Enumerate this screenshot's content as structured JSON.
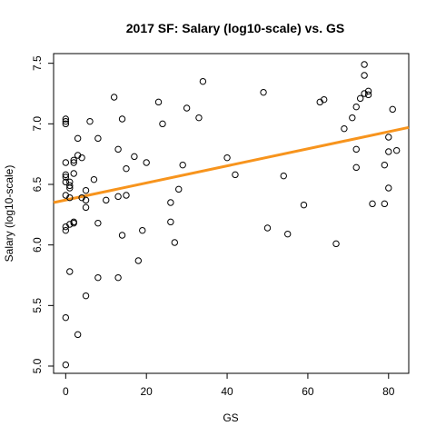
{
  "chart_data": {
    "type": "scatter",
    "title": "2017 SF: Salary (log10-scale) vs. GS",
    "xlabel": "GS",
    "ylabel": "Salary (log10-scale)",
    "xlim": [
      -3,
      85
    ],
    "ylim": [
      4.94,
      7.58
    ],
    "xticks": [
      0,
      20,
      40,
      60,
      80
    ],
    "xtick_labels": [
      "0",
      "20",
      "40",
      "60",
      "80"
    ],
    "yticks": [
      5.0,
      5.5,
      6.0,
      6.5,
      7.0,
      7.5
    ],
    "ytick_labels": [
      "5.0",
      "5.5",
      "6.0",
      "6.5",
      "7.0",
      "7.5"
    ],
    "grid": false,
    "point_color": "#000000",
    "trend_color": "#f7941d",
    "trendline": {
      "x": [
        -3,
        85
      ],
      "y": [
        6.35,
        6.97
      ]
    },
    "points": [
      [
        0,
        5.01
      ],
      [
        0,
        5.4
      ],
      [
        0,
        6.12
      ],
      [
        0,
        6.15
      ],
      [
        0,
        6.41
      ],
      [
        0,
        6.52
      ],
      [
        0,
        6.56
      ],
      [
        0,
        6.58
      ],
      [
        0,
        6.68
      ],
      [
        0,
        7.0
      ],
      [
        0,
        7.02
      ],
      [
        0,
        7.04
      ],
      [
        1,
        5.78
      ],
      [
        1,
        6.17
      ],
      [
        1,
        6.39
      ],
      [
        1,
        6.47
      ],
      [
        1,
        6.49
      ],
      [
        1,
        6.52
      ],
      [
        2,
        6.18
      ],
      [
        2,
        6.19
      ],
      [
        2,
        6.59
      ],
      [
        2,
        6.68
      ],
      [
        2,
        6.7
      ],
      [
        3,
        5.26
      ],
      [
        3,
        6.74
      ],
      [
        3,
        6.88
      ],
      [
        4,
        6.39
      ],
      [
        4,
        6.72
      ],
      [
        5,
        5.58
      ],
      [
        5,
        6.31
      ],
      [
        5,
        6.45
      ],
      [
        5,
        6.37
      ],
      [
        6,
        7.02
      ],
      [
        7,
        6.54
      ],
      [
        8,
        5.73
      ],
      [
        8,
        6.18
      ],
      [
        8,
        6.88
      ],
      [
        10,
        6.37
      ],
      [
        12,
        7.22
      ],
      [
        13,
        5.73
      ],
      [
        13,
        6.4
      ],
      [
        13,
        6.79
      ],
      [
        14,
        6.08
      ],
      [
        14,
        7.04
      ],
      [
        15,
        6.41
      ],
      [
        15,
        6.63
      ],
      [
        17,
        6.73
      ],
      [
        18,
        5.87
      ],
      [
        19,
        6.12
      ],
      [
        20,
        6.68
      ],
      [
        23,
        7.18
      ],
      [
        24,
        7.0
      ],
      [
        26,
        6.19
      ],
      [
        26,
        6.35
      ],
      [
        27,
        6.02
      ],
      [
        28,
        6.46
      ],
      [
        29,
        6.66
      ],
      [
        30,
        7.13
      ],
      [
        33,
        7.05
      ],
      [
        34,
        7.35
      ],
      [
        40,
        6.72
      ],
      [
        42,
        6.58
      ],
      [
        49,
        7.26
      ],
      [
        50,
        6.14
      ],
      [
        54,
        6.57
      ],
      [
        55,
        6.09
      ],
      [
        59,
        6.33
      ],
      [
        63,
        7.18
      ],
      [
        64,
        7.2
      ],
      [
        67,
        6.01
      ],
      [
        69,
        6.96
      ],
      [
        71,
        7.05
      ],
      [
        72,
        6.64
      ],
      [
        72,
        6.79
      ],
      [
        72,
        7.14
      ],
      [
        73,
        7.21
      ],
      [
        74,
        7.25
      ],
      [
        74,
        7.4
      ],
      [
        74,
        7.49
      ],
      [
        75,
        7.24
      ],
      [
        75,
        7.27
      ],
      [
        76,
        6.34
      ],
      [
        79,
        6.34
      ],
      [
        79,
        6.66
      ],
      [
        80,
        6.47
      ],
      [
        80,
        6.77
      ],
      [
        80,
        6.89
      ],
      [
        81,
        7.12
      ],
      [
        82,
        6.78
      ]
    ]
  }
}
